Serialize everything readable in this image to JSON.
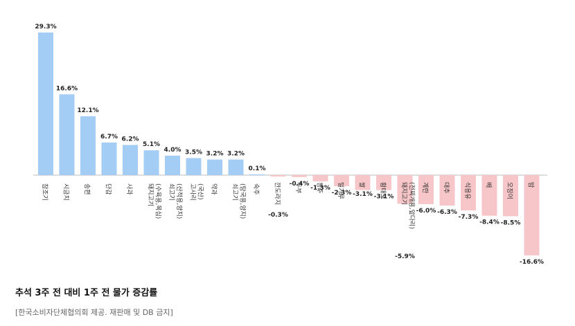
{
  "chart_data": {
    "type": "bar",
    "categories": [
      "참조기",
      "시금치",
      "송편",
      "단감",
      "사과",
      "돼지고기 (수육용,목심)",
      "쇠고기 (산적용,양지)",
      "고사리 (국산)",
      "약과",
      "쇠고기 (탕국용,양지)",
      "숙주",
      "깐도라지",
      "두부",
      "청주",
      "밀가루",
      "쌀",
      "황태포",
      "돼지고기 (전찌개용,앞다리)",
      "계란",
      "대추",
      "식용유",
      "배",
      "오징어",
      "밤"
    ],
    "values": [
      29.3,
      16.6,
      12.1,
      6.7,
      6.2,
      5.1,
      4.0,
      3.5,
      3.2,
      3.2,
      0.1,
      -0.3,
      -0.4,
      -1.3,
      -2.3,
      -3.1,
      -3.1,
      -5.9,
      -6.0,
      -6.3,
      -7.3,
      -8.4,
      -8.5,
      -16.6
    ],
    "value_labels": [
      "29.3%",
      "16.6%",
      "12.1%",
      "6.7%",
      "6.2%",
      "5.1%",
      "4.0%",
      "3.5%",
      "3.2%",
      "3.2%",
      "0.1%",
      "-0.3%",
      "-0.4%",
      "-1.3%",
      "-2.3%",
      "-3.1%",
      "-3.1%",
      "-5.9%",
      "-6.0%",
      "-6.3%",
      "-7.3%",
      "-8.4%",
      "-8.5%",
      "-16.6%"
    ],
    "ylim": [
      -16.6,
      29.3
    ],
    "colors": {
      "positive": "#a4cdf5",
      "negative": "#f7c6c8",
      "axis": "#bbbbbb"
    }
  },
  "caption": "추석 3주 전 대비 1주 전 물가 증감률",
  "source": "[한국소비자단체협의회 제공. 재판매 및 DB 금지]"
}
